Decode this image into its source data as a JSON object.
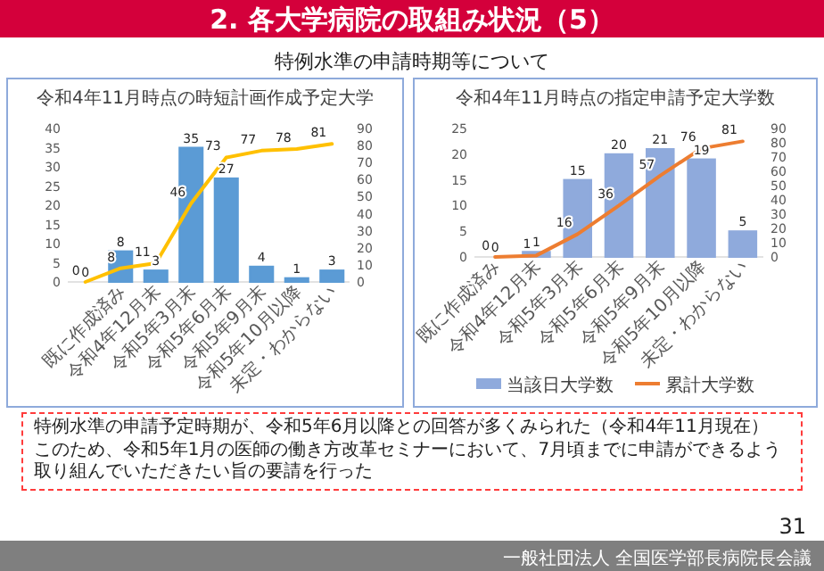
{
  "chart_data": [
    {
      "type": "other",
      "title": "2. 各大学病院の取組み状況（5）",
      "subtitle": "特例水準の申請時期等について",
      "annotations": [
        "特例水準の申請予定時期が、令和5年6月以降との回答が多くみられた（令和4年11月現在）",
        "このため、令和5年1月の医師の働き方改革セミナーにおいて、7月頃までに申請ができるよう取り組んでいただきたい旨の要請を行った",
        "31",
        "一般社団法人 全国医学部長病院長会議"
      ]
    },
    {
      "type": "bar",
      "title": "令和4年11月時点の時短計画作成予定大学",
      "categories": [
        null,
        "既に作成済み",
        "令和4年12月末",
        "令和5年3月末",
        "令和5年6月末",
        "令和5年9月末",
        "令和5年10月以降",
        "未定・わからない"
      ],
      "series": [
        {
          "type": "bar",
          "color": "#5b9bd5",
          "values": [
            0,
            8,
            3,
            35,
            27,
            4,
            1,
            3
          ]
        },
        {
          "type": "line",
          "axis": "y2",
          "color": "#ffc000",
          "values": [
            0,
            8,
            11,
            46,
            73,
            77,
            78,
            81
          ]
        }
      ],
      "ylim": [
        0,
        40
      ],
      "yticks": [
        0,
        5,
        10,
        15,
        20,
        25,
        30,
        35,
        40
      ],
      "y2lim": [
        0,
        90
      ],
      "y2ticks": [
        0,
        10,
        20,
        30,
        40,
        50,
        60,
        70,
        80,
        90
      ],
      "data_labels": true
    },
    {
      "type": "bar",
      "title": "令和4年11月時点の指定申請予定大学数",
      "categories": [
        "既に作成済み",
        "令和4年12月末",
        "令和5年3月末",
        "令和5年6月末",
        "令和5年9月末",
        "令和5年10月以降",
        "未定・わからない"
      ],
      "series": [
        {
          "type": "bar",
          "name": "当該日大学数",
          "color": "#8faadc",
          "values": [
            0,
            1,
            15,
            20,
            21,
            19,
            5
          ]
        },
        {
          "type": "line",
          "axis": "y2",
          "name": "累計大学数",
          "color": "#ed7d31",
          "values": [
            0,
            1,
            16,
            36,
            57,
            76,
            81
          ]
        }
      ],
      "ylim": [
        0,
        25
      ],
      "yticks": [
        0,
        5,
        10,
        15,
        20,
        25
      ],
      "y2lim": [
        0,
        90
      ],
      "y2ticks": [
        0,
        10,
        20,
        30,
        40,
        50,
        60,
        70,
        80,
        90
      ],
      "data_labels": true,
      "legend": "bottom"
    }
  ]
}
